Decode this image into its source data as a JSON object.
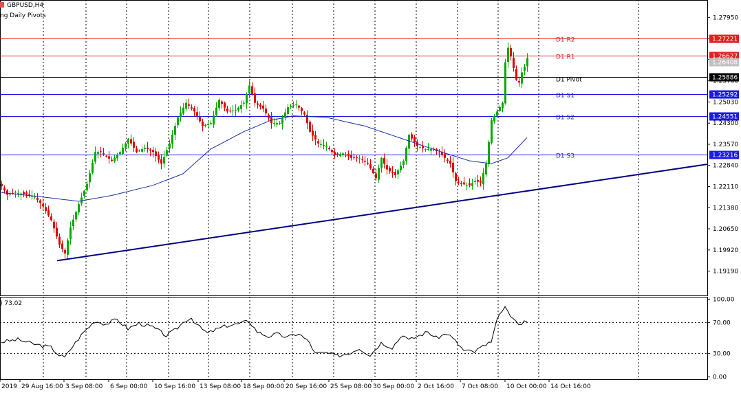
{
  "header": {
    "symbol": "GBPUSD,H4",
    "indicator": "ng Daily Pivots",
    "rsi_label": ") 73.02",
    "symbol_color": "#e05050"
  },
  "chart_data": [
    {
      "type": "candlestick",
      "symbol": "GBPUSD",
      "timeframe": "H4",
      "ylim": [
        1.1835,
        1.2855
      ],
      "y_ticks": [
        "1.27950",
        "1.27220",
        "1.26490",
        "1.25760",
        "1.25030",
        "1.24300",
        "1.23570",
        "1.22840",
        "1.22110",
        "1.21380",
        "1.20650",
        "1.19920",
        "1.19190"
      ],
      "x_ticks": [
        "2019",
        "29 Aug 16:00",
        "3 Sep 08:00",
        "6 Sep 00:00",
        "10 Sep 16:00",
        "13 Sep 08:00",
        "18 Sep 00:00",
        "20 Sep 16:00",
        "25 Sep 08:00",
        "30 Sep 00:00",
        "2 Oct 16:00",
        "7 Oct 08:00",
        "10 Oct 00:00",
        "14 Oct 16:00"
      ],
      "pivot_levels": [
        {
          "name": "D1 R2",
          "value": 1.27221,
          "label": "1.27221",
          "color": "#e02020"
        },
        {
          "name": "D1 R1",
          "value": 1.26627,
          "label": "1.26627",
          "color": "#e02020"
        },
        {
          "name": "",
          "value": 1.26408,
          "label": "1.26408",
          "color": "#c0c0c0"
        },
        {
          "name": "D1 Pivot",
          "value": 1.25886,
          "label": "1.25886",
          "color": "#000000"
        },
        {
          "name": "D1 S1",
          "value": 1.25292,
          "label": "1.25292",
          "color": "#1a1ae0"
        },
        {
          "name": "D1 S2",
          "value": 1.24551,
          "label": "1.24551",
          "color": "#1a1ae0"
        },
        {
          "name": "D1 S3",
          "value": 1.23216,
          "label": "1.23216",
          "color": "#1a1ae0"
        }
      ],
      "trendline": {
        "color": "#000080",
        "from": {
          "bar": 4,
          "price": 1.1955
        },
        "to": {
          "bar": 241,
          "price": 1.2289
        }
      },
      "moving_average_color": "#1a2fa8",
      "bull_color": "#00aa00",
      "bear_color": "#e00000",
      "anchors": [
        [
          0,
          1.2212
        ],
        [
          2,
          1.2183
        ],
        [
          5,
          1.219
        ],
        [
          9,
          1.2183
        ],
        [
          12,
          1.2176
        ],
        [
          15,
          1.2143
        ],
        [
          18,
          1.2095
        ],
        [
          21,
          1.201
        ],
        [
          23,
          1.198
        ],
        [
          25,
          1.207
        ],
        [
          28,
          1.215
        ],
        [
          31,
          1.222
        ],
        [
          34,
          1.233
        ],
        [
          36,
          1.233
        ],
        [
          40,
          1.23
        ],
        [
          43,
          1.233
        ],
        [
          46,
          1.2375
        ],
        [
          49,
          1.233
        ],
        [
          52,
          1.2345
        ],
        [
          55,
          1.233
        ],
        [
          58,
          1.229
        ],
        [
          61,
          1.236
        ],
        [
          64,
          1.245
        ],
        [
          67,
          1.25
        ],
        [
          70,
          1.247
        ],
        [
          73,
          1.242
        ],
        [
          76,
          1.243
        ],
        [
          79,
          1.251
        ],
        [
          82,
          1.247
        ],
        [
          85,
          1.2475
        ],
        [
          88,
          1.25
        ],
        [
          90,
          1.256
        ],
        [
          92,
          1.25
        ],
        [
          95,
          1.248
        ],
        [
          98,
          1.243
        ],
        [
          101,
          1.243
        ],
        [
          104,
          1.2485
        ],
        [
          107,
          1.2495
        ],
        [
          110,
          1.246
        ],
        [
          112,
          1.24
        ],
        [
          115,
          1.236
        ],
        [
          118,
          1.235
        ],
        [
          121,
          1.232
        ],
        [
          124,
          1.2325
        ],
        [
          127,
          1.231
        ],
        [
          130,
          1.231
        ],
        [
          133,
          1.229
        ],
        [
          136,
          1.224
        ],
        [
          138,
          1.231
        ],
        [
          140,
          1.227
        ],
        [
          143,
          1.225
        ],
        [
          146,
          1.23
        ],
        [
          148,
          1.239
        ],
        [
          151,
          1.235
        ],
        [
          154,
          1.234
        ],
        [
          157,
          1.234
        ],
        [
          160,
          1.232
        ],
        [
          163,
          1.229
        ],
        [
          165,
          1.223
        ],
        [
          167,
          1.222
        ],
        [
          170,
          1.2215
        ],
        [
          172,
          1.223
        ],
        [
          174,
          1.2225
        ],
        [
          176,
          1.229
        ],
        [
          178,
          1.244
        ],
        [
          180,
          1.247
        ],
        [
          182,
          1.25
        ],
        [
          183,
          1.264
        ],
        [
          184,
          1.269
        ],
        [
          185,
          1.266
        ],
        [
          186,
          1.262
        ],
        [
          187,
          1.258
        ],
        [
          188,
          1.257
        ],
        [
          189,
          1.2605
        ],
        [
          190,
          1.2625
        ],
        [
          191,
          1.2655
        ]
      ],
      "ma_anchors": [
        [
          0,
          1.219
        ],
        [
          15,
          1.2175
        ],
        [
          28,
          1.216
        ],
        [
          40,
          1.218
        ],
        [
          55,
          1.2215
        ],
        [
          66,
          1.2255
        ],
        [
          76,
          1.234
        ],
        [
          88,
          1.24
        ],
        [
          98,
          1.244
        ],
        [
          106,
          1.2455
        ],
        [
          118,
          1.245
        ],
        [
          132,
          1.242
        ],
        [
          146,
          1.2375
        ],
        [
          160,
          1.233
        ],
        [
          170,
          1.23
        ],
        [
          178,
          1.229
        ],
        [
          184,
          1.231
        ],
        [
          191,
          1.238
        ]
      ]
    },
    {
      "type": "line",
      "name": ") 73.02",
      "ylim": [
        -3,
        103
      ],
      "y_ticks": [
        "100.00",
        "70.00",
        "30.00",
        "0.00"
      ],
      "dotted_levels": [
        70,
        30
      ],
      "anchors": [
        [
          0,
          45
        ],
        [
          6,
          48
        ],
        [
          12,
          42
        ],
        [
          18,
          38
        ],
        [
          21,
          28
        ],
        [
          23,
          25
        ],
        [
          26,
          40
        ],
        [
          30,
          58
        ],
        [
          34,
          72
        ],
        [
          38,
          68
        ],
        [
          42,
          74
        ],
        [
          46,
          62
        ],
        [
          50,
          69
        ],
        [
          55,
          64
        ],
        [
          60,
          53
        ],
        [
          63,
          60
        ],
        [
          67,
          73
        ],
        [
          69,
          76
        ],
        [
          72,
          64
        ],
        [
          75,
          56
        ],
        [
          78,
          61
        ],
        [
          82,
          66
        ],
        [
          86,
          68
        ],
        [
          90,
          72
        ],
        [
          93,
          58
        ],
        [
          97,
          52
        ],
        [
          100,
          55
        ],
        [
          104,
          51
        ],
        [
          108,
          56
        ],
        [
          112,
          44
        ],
        [
          114,
          30
        ],
        [
          118,
          31
        ],
        [
          122,
          27
        ],
        [
          126,
          30
        ],
        [
          130,
          37
        ],
        [
          134,
          28
        ],
        [
          138,
          44
        ],
        [
          142,
          38
        ],
        [
          146,
          55
        ],
        [
          148,
          47
        ],
        [
          151,
          52
        ],
        [
          155,
          58
        ],
        [
          158,
          50
        ],
        [
          162,
          56
        ],
        [
          165,
          46
        ],
        [
          168,
          34
        ],
        [
          172,
          32
        ],
        [
          175,
          40
        ],
        [
          176,
          38
        ],
        [
          178,
          47
        ],
        [
          180,
          71
        ],
        [
          182,
          86
        ],
        [
          183,
          88
        ],
        [
          185,
          79
        ],
        [
          187,
          70
        ],
        [
          189,
          69
        ],
        [
          191,
          73
        ]
      ]
    }
  ]
}
